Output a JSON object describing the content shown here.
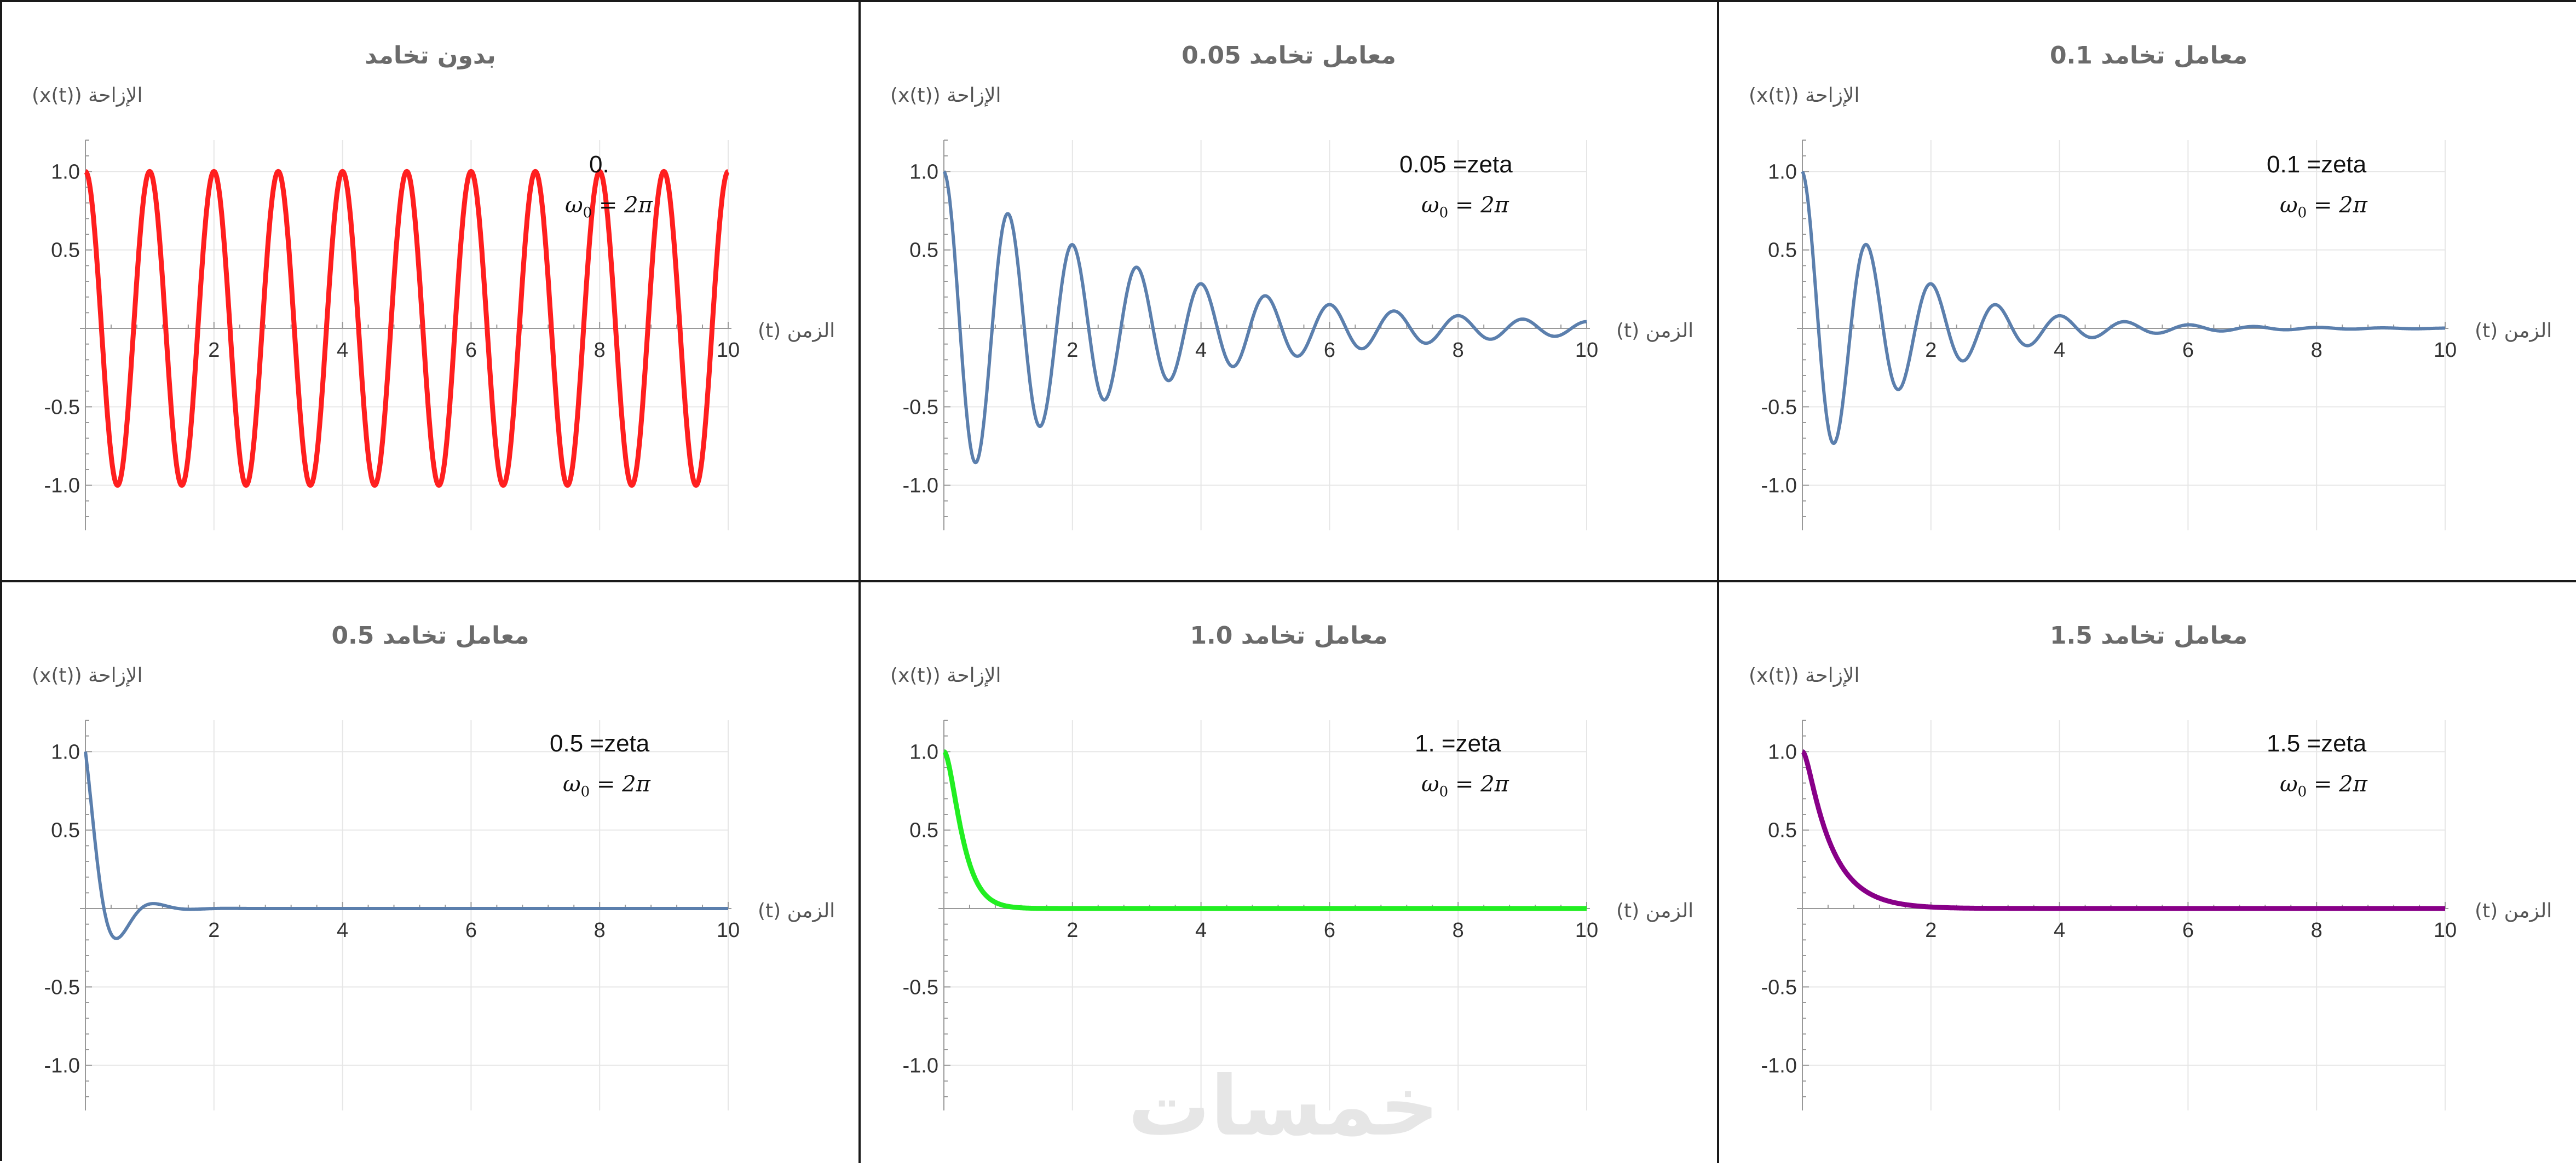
{
  "watermark": "خمسات",
  "chart_data": [
    {
      "type": "line",
      "title": "بدون تخامد",
      "ylabel": "الإزاحة (x(t))",
      "xlabel": "الزمن (t)",
      "zeta_label": "0.",
      "omega_label": "ω₀ = 2π",
      "zeta": 0,
      "omega0": 6.283185,
      "line_color": "#ff1f1f",
      "line_width": "thick",
      "xlim": [
        0,
        10
      ],
      "ylim": [
        -1.2,
        1.2
      ],
      "xticks": [
        2,
        4,
        6,
        8,
        10
      ],
      "yticks": [
        -1.0,
        -0.5,
        0.5,
        1.0
      ],
      "ytick_labels": [
        "-1.0",
        "-0.5",
        "0.5",
        "1.0"
      ],
      "grid": true,
      "series": [
        {
          "x": [
            0,
            0.5,
            1,
            1.5,
            2,
            2.5,
            3,
            3.5,
            4,
            4.5,
            5,
            5.5,
            6,
            6.5,
            7,
            7.5,
            8,
            8.5,
            9,
            9.5,
            10
          ],
          "values": [
            1,
            -1,
            1,
            -1,
            1,
            -1,
            1,
            -1,
            1,
            -1,
            1,
            -1,
            1,
            -1,
            1,
            -1,
            1,
            -1,
            1,
            -1,
            1
          ]
        }
      ]
    },
    {
      "type": "line",
      "title": "معامل تخامد 0.05",
      "ylabel": "الإزاحة (x(t))",
      "xlabel": "الزمن (t)",
      "zeta_label": "0.05 =zeta",
      "omega_label": "ω₀ = 2π",
      "zeta": 0.05,
      "omega0": 6.283185,
      "line_color": "#5b7fad",
      "line_width": "normal",
      "xlim": [
        0,
        10
      ],
      "ylim": [
        -1.2,
        1.2
      ],
      "xticks": [
        2,
        4,
        6,
        8,
        10
      ],
      "yticks": [
        -1.0,
        -0.5,
        0.5,
        1.0
      ],
      "ytick_labels": [
        "-1.0",
        "-0.5",
        "0.5",
        "1.0"
      ],
      "grid": true,
      "series": [
        {
          "x": [
            0,
            0.5,
            1,
            1.5,
            2,
            3,
            4,
            5,
            6,
            7,
            8,
            9,
            10
          ],
          "values": [
            1,
            -0.85,
            0.73,
            -0.62,
            0.53,
            0.39,
            0.28,
            0.21,
            0.15,
            0.11,
            0.08,
            0.06,
            0.04
          ]
        }
      ]
    },
    {
      "type": "line",
      "title": "معامل تخامد 0.1",
      "ylabel": "الإزاحة (x(t))",
      "xlabel": "الزمن (t)",
      "zeta_label": "0.1 =zeta",
      "omega_label": "ω₀ = 2π",
      "zeta": 0.1,
      "omega0": 6.283185,
      "line_color": "#5b7fad",
      "line_width": "normal",
      "xlim": [
        0,
        10
      ],
      "ylim": [
        -1.2,
        1.2
      ],
      "xticks": [
        2,
        4,
        6,
        8,
        10
      ],
      "yticks": [
        -1.0,
        -0.5,
        0.5,
        1.0
      ],
      "ytick_labels": [
        "-1.0",
        "-0.5",
        "0.5",
        "1.0"
      ],
      "grid": true,
      "series": [
        {
          "x": [
            0,
            0.5,
            1,
            1.5,
            2,
            2.5,
            3,
            4,
            5,
            6,
            8,
            10
          ],
          "values": [
            1,
            -0.73,
            0.53,
            -0.39,
            0.28,
            -0.21,
            0.15,
            0.08,
            0.04,
            0.02,
            0.01,
            0
          ]
        }
      ]
    },
    {
      "type": "line",
      "title": "معامل تخامد 0.5",
      "ylabel": "الإزاحة (x(t))",
      "xlabel": "الزمن (t)",
      "zeta_label": "0.5 =zeta",
      "omega_label": "ω₀ = 2π",
      "zeta": 0.5,
      "omega0": 6.283185,
      "line_color": "#5b7fad",
      "line_width": "normal",
      "xlim": [
        0,
        10
      ],
      "ylim": [
        -1.2,
        1.2
      ],
      "xticks": [
        2,
        4,
        6,
        8,
        10
      ],
      "yticks": [
        -1.0,
        -0.5,
        0.5,
        1.0
      ],
      "ytick_labels": [
        "-1.0",
        "-0.5",
        "0.5",
        "1.0"
      ],
      "grid": true,
      "series": [
        {
          "x": [
            0,
            0.25,
            0.5,
            0.75,
            1,
            1.5,
            2,
            10
          ],
          "values": [
            1,
            0.35,
            -0.16,
            -0.08,
            0.03,
            0,
            0,
            0
          ]
        }
      ]
    },
    {
      "type": "line",
      "title": "معامل تخامد 1.0",
      "ylabel": "الإزاحة (x(t))",
      "xlabel": "الزمن (t)",
      "zeta_label": "1. =zeta",
      "omega_label": "ω₀ = 2π",
      "zeta": 1.0,
      "omega0": 6.283185,
      "line_color": "#22ee22",
      "line_width": "thick",
      "xlim": [
        0,
        10
      ],
      "ylim": [
        -1.2,
        1.2
      ],
      "xticks": [
        2,
        4,
        6,
        8,
        10
      ],
      "yticks": [
        -1.0,
        -0.5,
        0.5,
        1.0
      ],
      "ytick_labels": [
        "-1.0",
        "-0.5",
        "0.5",
        "1.0"
      ],
      "grid": true,
      "series": [
        {
          "x": [
            0,
            0.25,
            0.5,
            0.75,
            1,
            1.5,
            2,
            10
          ],
          "values": [
            1,
            0.53,
            0.18,
            0.05,
            0.01,
            0,
            0,
            0
          ]
        }
      ]
    },
    {
      "type": "line",
      "title": "معامل تخامد 1.5",
      "ylabel": "الإزاحة (x(t))",
      "xlabel": "الزمن (t)",
      "zeta_label": "1.5 =zeta",
      "omega_label": "ω₀ = 2π",
      "zeta": 1.5,
      "omega0": 6.283185,
      "line_color": "#880088",
      "line_width": "thick",
      "xlim": [
        0,
        10
      ],
      "ylim": [
        -1.2,
        1.2
      ],
      "xticks": [
        2,
        4,
        6,
        8,
        10
      ],
      "yticks": [
        -1.0,
        -0.5,
        0.5,
        1.0
      ],
      "ytick_labels": [
        "-1.0",
        "-0.5",
        "0.5",
        "1.0"
      ],
      "grid": true,
      "series": [
        {
          "x": [
            0,
            0.25,
            0.5,
            1,
            1.5,
            2,
            3,
            10
          ],
          "values": [
            1,
            0.68,
            0.38,
            0.11,
            0.03,
            0.01,
            0,
            0
          ]
        }
      ]
    }
  ]
}
